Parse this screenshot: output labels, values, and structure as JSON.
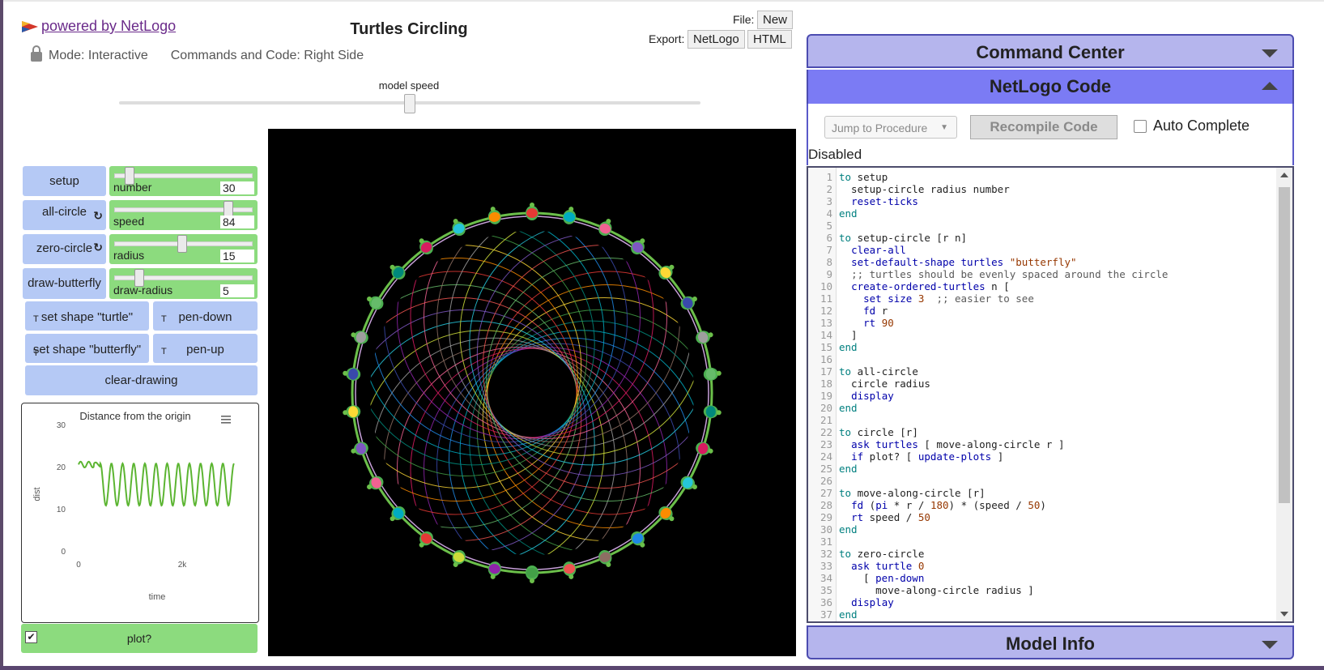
{
  "header": {
    "powered_by": "powered by NetLogo",
    "title": "Turtles Circling",
    "mode": "Mode: Interactive",
    "commands_and_code": "Commands and Code: Right Side",
    "file_label": "File:",
    "new_label": "New",
    "export_label": "Export:",
    "export_netlogo": "NetLogo",
    "export_html": "HTML"
  },
  "speed": {
    "label": "model speed",
    "value_fraction": 0.5
  },
  "buttons": {
    "setup": "setup",
    "all_circle": "all-circle",
    "zero_circle": "zero-circle",
    "draw_butterfly": "draw-butterfly",
    "set_shape_turtle": "set shape \"turtle\"",
    "pen_down": "pen-down",
    "set_shape_butterfly": "set shape \"butterfly\"",
    "pen_up": "pen-up",
    "clear_drawing": "clear-drawing",
    "turtle_flag": "T",
    "forever_glyph": "↻"
  },
  "sliders": [
    {
      "label": "number",
      "value": "30",
      "fraction": 0.1
    },
    {
      "label": "speed",
      "value": "84",
      "fraction": 0.84
    },
    {
      "label": "radius",
      "value": "15",
      "fraction": 0.5
    },
    {
      "label": "draw-radius",
      "value": "5",
      "fraction": 0.17
    }
  ],
  "plot": {
    "title": "Distance from the origin",
    "menu_icon": "menu-icon",
    "ylabel": "dist",
    "xlabel": "time",
    "yticks": [
      "30",
      "20",
      "10",
      "0"
    ],
    "xticks": [
      "0",
      "2k"
    ],
    "line_color": "#5cb532"
  },
  "chart_data": {
    "type": "line",
    "title": "Distance from the origin",
    "xlabel": "time",
    "ylabel": "dist",
    "ylim": [
      0,
      30
    ],
    "xlim": [
      0,
      3000
    ],
    "series": [
      {
        "values": "oscillating",
        "x": [
          0,
          150,
          300,
          450,
          500,
          600,
          700,
          800,
          900,
          1000,
          1100,
          1200,
          1300,
          1400,
          1500,
          1600,
          1700,
          1800,
          1900,
          2000,
          2100,
          2200,
          2300,
          2400,
          2500,
          2600,
          2700,
          2800,
          2900,
          3000
        ],
        "y": [
          20.5,
          21,
          20,
          20.5,
          20,
          15,
          11,
          15,
          20.5,
          15,
          11,
          15,
          20.5,
          15,
          11,
          15,
          20.5,
          15,
          11,
          15,
          20.5,
          15,
          11,
          15,
          20.5,
          15,
          11,
          15,
          20.5,
          20.5
        ]
      }
    ],
    "grid": false
  },
  "switch": {
    "label": "plot?",
    "on": true
  },
  "right_panel": {
    "command_center": "Command Center",
    "netlogo_code": "NetLogo Code",
    "jump_to_procedure": "Jump to Procedure",
    "recompile": "Recompile Code",
    "auto_complete": "Auto Complete",
    "disabled": "Disabled",
    "model_info": "Model Info"
  },
  "code_lines": [
    "to setup",
    "  setup-circle radius number",
    "  reset-ticks",
    "end",
    "",
    "to setup-circle [r n]",
    "  clear-all",
    "  set-default-shape turtles \"butterfly\"",
    "  ;; turtles should be evenly spaced around the circle",
    "  create-ordered-turtles n [",
    "    set size 3  ;; easier to see",
    "    fd r",
    "    rt 90",
    "  ]",
    "end",
    "",
    "to all-circle",
    "  circle radius",
    "  display",
    "end",
    "",
    "to circle [r]",
    "  ask turtles [ move-along-circle r ]",
    "  if plot? [ update-plots ]",
    "end",
    "",
    "to move-along-circle [r]",
    "  fd (pi * r / 180) * (speed / 50)",
    "  rt speed / 50",
    "end",
    "",
    "to zero-circle",
    "  ask turtle 0",
    "    [ pen-down",
    "      move-along-circle radius ]",
    "  display",
    "end"
  ]
}
